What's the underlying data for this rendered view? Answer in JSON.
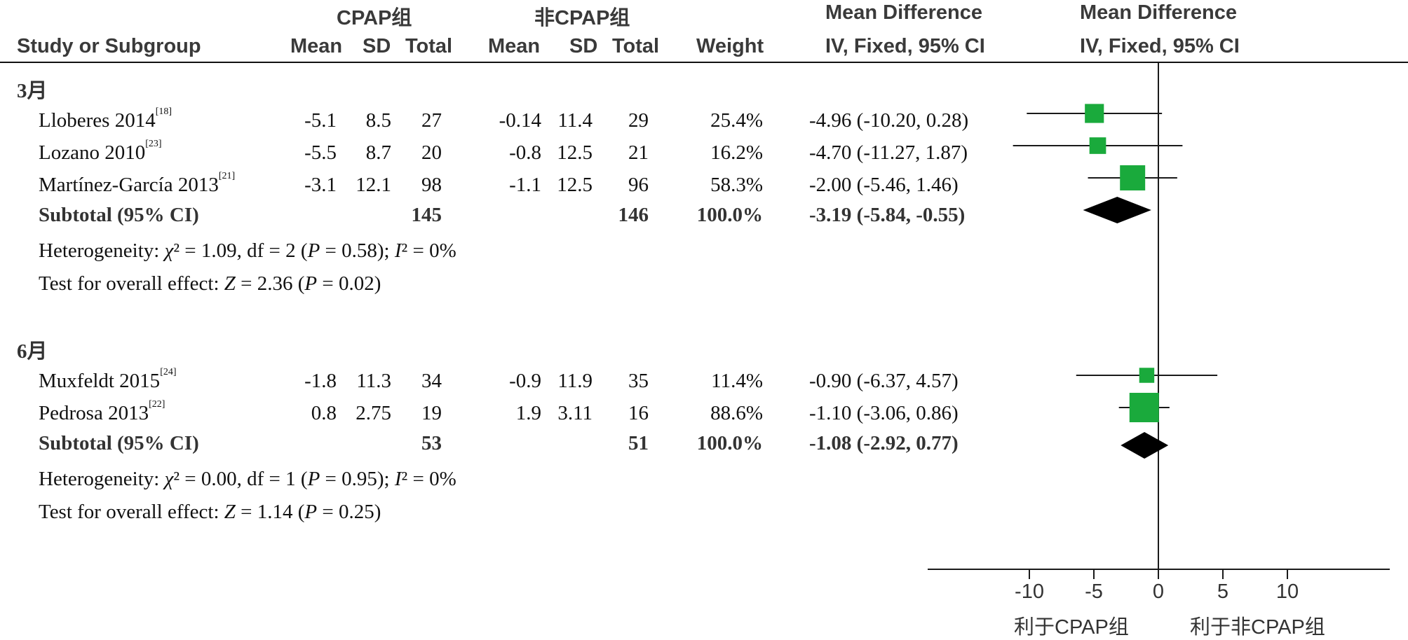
{
  "header": {
    "group_exp": "CPAP组",
    "group_ctrl": "非CPAP组",
    "md_col_title": "Mean Difference",
    "md_col_sub": "IV, Fixed, 95% CI",
    "plot_col_title": "Mean Difference",
    "plot_col_sub": "IV, Fixed, 95% CI",
    "study_col": "Study or Subgroup",
    "mean": "Mean",
    "sd": "SD",
    "total": "Total",
    "weight": "Weight"
  },
  "subgroups": [
    {
      "label": "3月",
      "studies": [
        {
          "name": "Lloberes 2014",
          "ref": "[18]",
          "e_mean": "-5.1",
          "e_sd": "8.5",
          "e_total": "27",
          "c_mean": "-0.14",
          "c_sd": "11.4",
          "c_total": "29",
          "weight": "25.4%",
          "ci_text": "-4.96 (-10.20, 0.28)"
        },
        {
          "name": "Lozano 2010",
          "ref": "[23]",
          "e_mean": "-5.5",
          "e_sd": "8.7",
          "e_total": "20",
          "c_mean": "-0.8",
          "c_sd": "12.5",
          "c_total": "21",
          "weight": "16.2%",
          "ci_text": "-4.70 (-11.27, 1.87)"
        },
        {
          "name": "Martínez-García 2013",
          "ref": "[21]",
          "e_mean": "-3.1",
          "e_sd": "12.1",
          "e_total": "98",
          "c_mean": "-1.1",
          "c_sd": "12.5",
          "c_total": "96",
          "weight": "58.3%",
          "ci_text": "-2.00 (-5.46, 1.46)"
        }
      ],
      "subtotal": {
        "label": "Subtotal (95% CI)",
        "e_total": "145",
        "c_total": "146",
        "weight": "100.0%",
        "ci_text": "-3.19 (-5.84, -0.55)"
      },
      "heterogeneity": {
        "prefix": "Heterogeneity: ",
        "chi": "χ",
        "chi_rest": "² = 1.09, df = 2 (",
        "p": "P",
        "p_rest": " = 0.58); ",
        "i": "I",
        "i_rest": "² = 0%"
      },
      "overall": {
        "prefix": "Test for overall effect: ",
        "z": "Z",
        "z_rest": " = 2.36 (",
        "p": "P",
        "p_rest": " = 0.02)"
      }
    },
    {
      "label": "6月",
      "studies": [
        {
          "name": "Muxfeldt 2015",
          "ref": "[24]",
          "e_mean": "-1.8",
          "e_sd": "11.3",
          "e_total": "34",
          "c_mean": "-0.9",
          "c_sd": "11.9",
          "c_total": "35",
          "weight": "11.4%",
          "ci_text": "-0.90 (-6.37, 4.57)"
        },
        {
          "name": "Pedrosa 2013",
          "ref": "[22]",
          "e_mean": "0.8",
          "e_sd": "2.75",
          "e_total": "19",
          "c_mean": "1.9",
          "c_sd": "3.11",
          "c_total": "16",
          "weight": "88.6%",
          "ci_text": "-1.10 (-3.06, 0.86)"
        }
      ],
      "subtotal": {
        "label": "Subtotal (95% CI)",
        "e_total": "53",
        "c_total": "51",
        "weight": "100.0%",
        "ci_text": "-1.08 (-2.92, 0.77)"
      },
      "heterogeneity": {
        "prefix": "Heterogeneity: ",
        "chi": "χ",
        "chi_rest": "² = 0.00, df = 1 (",
        "p": "P",
        "p_rest": " = 0.95); ",
        "i": "I",
        "i_rest": "² = 0%"
      },
      "overall": {
        "prefix": "Test for overall effect: ",
        "z": "Z",
        "z_rest": " = 1.14 (",
        "p": "P",
        "p_rest": " = 0.25)"
      }
    }
  ],
  "axis": {
    "favours_left": "利于CPAP组",
    "favours_right": "利于非CPAP组"
  },
  "colors": {
    "marker": "#1aaa3c",
    "diamond": "#000000",
    "line": "#1a1a1a"
  },
  "chart_data": {
    "type": "forest",
    "xlim": [
      -20,
      20
    ],
    "xticks": [
      -10,
      -5,
      0,
      5,
      10
    ],
    "xtick_labels": [
      "-10",
      "-5",
      "0",
      "5",
      "10"
    ],
    "studies": [
      {
        "group": "3月",
        "name": "Lloberes 2014",
        "md": -4.96,
        "lo": -10.2,
        "hi": 0.28,
        "weight": 25.4
      },
      {
        "group": "3月",
        "name": "Lozano 2010",
        "md": -4.7,
        "lo": -11.27,
        "hi": 1.87,
        "weight": 16.2
      },
      {
        "group": "3月",
        "name": "Martínez-García 2013",
        "md": -2.0,
        "lo": -5.46,
        "hi": 1.46,
        "weight": 58.3
      },
      {
        "group": "6月",
        "name": "Muxfeldt 2015",
        "md": -0.9,
        "lo": -6.37,
        "hi": 4.57,
        "weight": 11.4
      },
      {
        "group": "6月",
        "name": "Pedrosa 2013",
        "md": -1.1,
        "lo": -3.06,
        "hi": 0.86,
        "weight": 88.6
      }
    ],
    "subtotals": [
      {
        "group": "3月",
        "md": -3.19,
        "lo": -5.84,
        "hi": -0.55
      },
      {
        "group": "6月",
        "md": -1.08,
        "lo": -2.92,
        "hi": 0.77
      }
    ]
  }
}
